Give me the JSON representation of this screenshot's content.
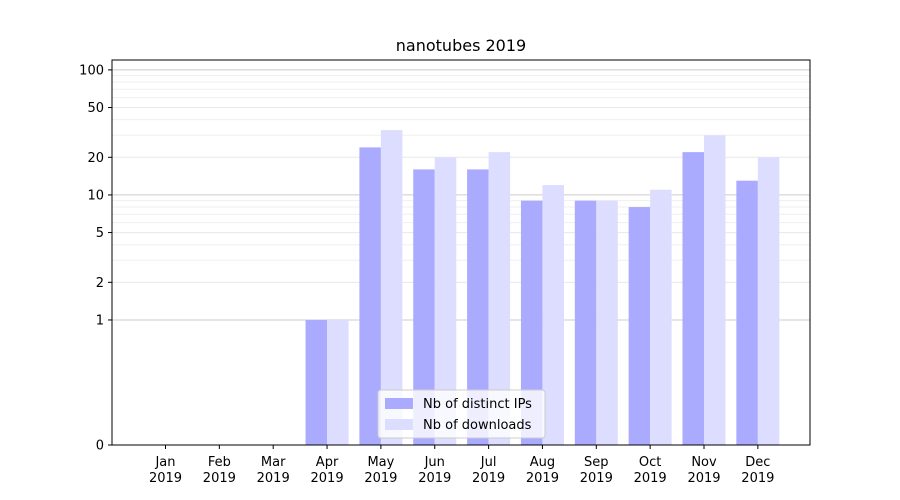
{
  "chart_data": {
    "type": "bar",
    "title": "nanotubes 2019",
    "xlabel": "",
    "ylabel": "",
    "yscale": "symlog",
    "ylim": [
      0,
      120
    ],
    "grid": true,
    "legend_position": "bottom-center",
    "categories": [
      [
        "Jan",
        "2019"
      ],
      [
        "Feb",
        "2019"
      ],
      [
        "Mar",
        "2019"
      ],
      [
        "Apr",
        "2019"
      ],
      [
        "May",
        "2019"
      ],
      [
        "Jun",
        "2019"
      ],
      [
        "Jul",
        "2019"
      ],
      [
        "Aug",
        "2019"
      ],
      [
        "Sep",
        "2019"
      ],
      [
        "Oct",
        "2019"
      ],
      [
        "Nov",
        "2019"
      ],
      [
        "Dec",
        "2019"
      ]
    ],
    "y_ticks": [
      {
        "value": 0,
        "label": "0"
      },
      {
        "value": 1,
        "label": "1"
      },
      {
        "value": 2,
        "label": "2"
      },
      {
        "value": 5,
        "label": "5"
      },
      {
        "value": 10,
        "label": "10"
      },
      {
        "value": 20,
        "label": "20"
      },
      {
        "value": 50,
        "label": "50"
      },
      {
        "value": 100,
        "label": "100"
      }
    ],
    "series": [
      {
        "name": "Nb of distinct IPs",
        "color": "#aaaaff",
        "values": [
          0,
          0,
          0,
          1,
          24,
          16,
          16,
          9,
          9,
          8,
          22,
          13
        ]
      },
      {
        "name": "Nb of downloads",
        "color": "#ddddff",
        "values": [
          0,
          0,
          0,
          1,
          33,
          20,
          22,
          12,
          9,
          11,
          30,
          20
        ]
      }
    ]
  }
}
